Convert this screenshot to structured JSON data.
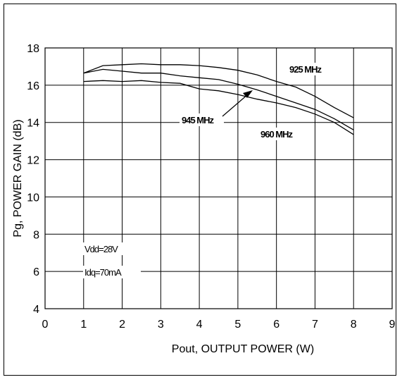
{
  "chart_data": {
    "type": "line",
    "title": "",
    "xlabel": "Pout, OUTPUT POWER (W)",
    "ylabel": "Pg, POWER GAIN (dB)",
    "xlim": [
      0,
      9
    ],
    "ylim": [
      4,
      18
    ],
    "xticks": [
      0,
      1,
      2,
      3,
      4,
      5,
      6,
      7,
      8,
      9
    ],
    "yticks": [
      4,
      6,
      8,
      10,
      12,
      14,
      16,
      18
    ],
    "grid": true,
    "series": [
      {
        "name": "925 MHz",
        "x": [
          1,
          1.5,
          2,
          2.5,
          3,
          3.5,
          4,
          4.5,
          5,
          5.5,
          6,
          6.5,
          7,
          7.5,
          8
        ],
        "y": [
          16.65,
          17.05,
          17.1,
          17.15,
          17.1,
          17.1,
          17.05,
          16.95,
          16.8,
          16.55,
          16.2,
          15.9,
          15.4,
          14.8,
          14.25
        ]
      },
      {
        "name": "945 MHz",
        "x": [
          1,
          1.5,
          2,
          2.5,
          3,
          3.5,
          4,
          4.5,
          5,
          5.5,
          6,
          6.5,
          7,
          7.5,
          8
        ],
        "y": [
          16.65,
          16.85,
          16.75,
          16.65,
          16.65,
          16.5,
          16.4,
          16.3,
          16.05,
          15.75,
          15.4,
          15.05,
          14.7,
          14.2,
          13.6
        ]
      },
      {
        "name": "960 MHz",
        "x": [
          1,
          1.5,
          2,
          2.5,
          3,
          3.5,
          4,
          4.5,
          5,
          5.5,
          6,
          6.5,
          7,
          7.5,
          8
        ],
        "y": [
          16.2,
          16.25,
          16.2,
          16.25,
          16.15,
          16.1,
          15.8,
          15.7,
          15.5,
          15.25,
          15.05,
          14.8,
          14.45,
          14.0,
          13.35
        ]
      }
    ],
    "annotations": {
      "label_925": "925 MHz",
      "label_945": "945 MHz",
      "label_960": "960 MHz",
      "vdd": "Vdd=28V",
      "idq": "Idq=70mA"
    }
  }
}
